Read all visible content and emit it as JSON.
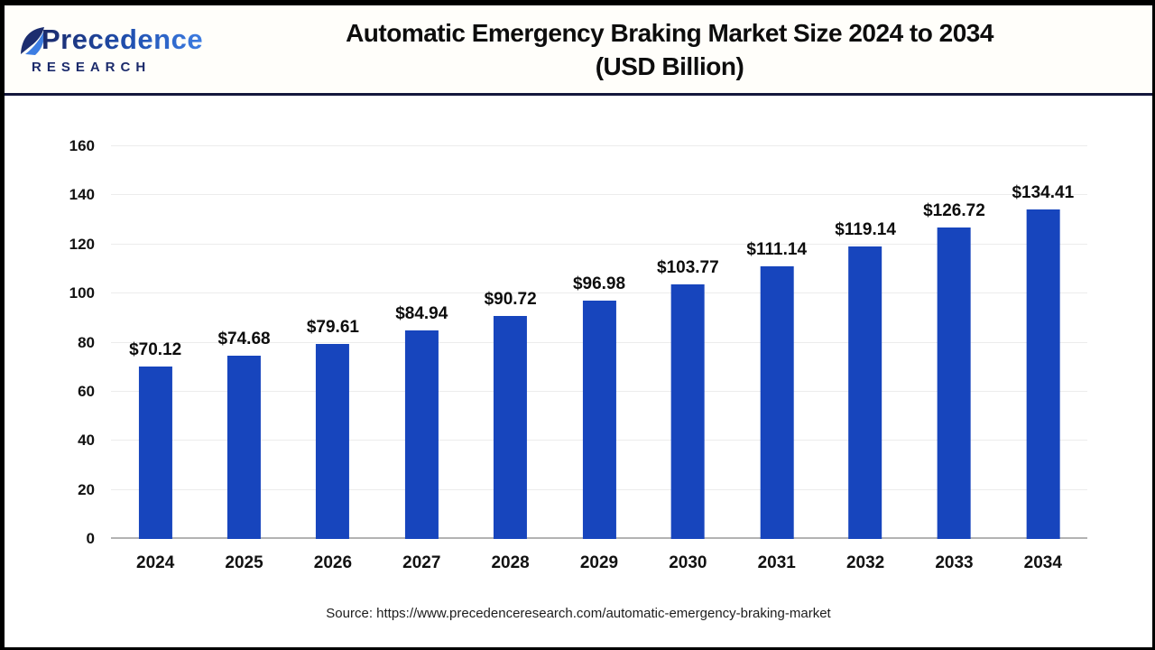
{
  "header": {
    "logo_name": "Precedence",
    "logo_sub": "RESEARCH",
    "title_line1": "Automatic Emergency Braking Market Size 2024 to 2034",
    "title_line2": "(USD Billion)"
  },
  "chart_data": {
    "type": "bar",
    "title": "Automatic Emergency Braking Market Size 2024 to 2034 (USD Billion)",
    "categories": [
      "2024",
      "2025",
      "2026",
      "2027",
      "2028",
      "2029",
      "2030",
      "2031",
      "2032",
      "2033",
      "2034"
    ],
    "values": [
      70.12,
      74.68,
      79.61,
      84.94,
      90.72,
      96.98,
      103.77,
      111.14,
      119.14,
      126.72,
      134.41
    ],
    "value_prefix": "$",
    "unit": "USD Billion",
    "ylim": [
      0,
      160
    ],
    "ytick_step": 20,
    "yticks": [
      0,
      20,
      40,
      60,
      80,
      100,
      120,
      140,
      160
    ],
    "bar_color": "#1745bd",
    "grid": true,
    "legend": false
  },
  "footer": {
    "source": "Source: https://www.precedenceresearch.com/automatic-emergency-braking-market"
  },
  "colors": {
    "bar": "#1745bd",
    "logo_navy": "#1b2a6b",
    "logo_blue": "#3d7de2",
    "divider": "#14173c",
    "gridline": "#ececec",
    "axis_line": "#b3b3b3"
  }
}
